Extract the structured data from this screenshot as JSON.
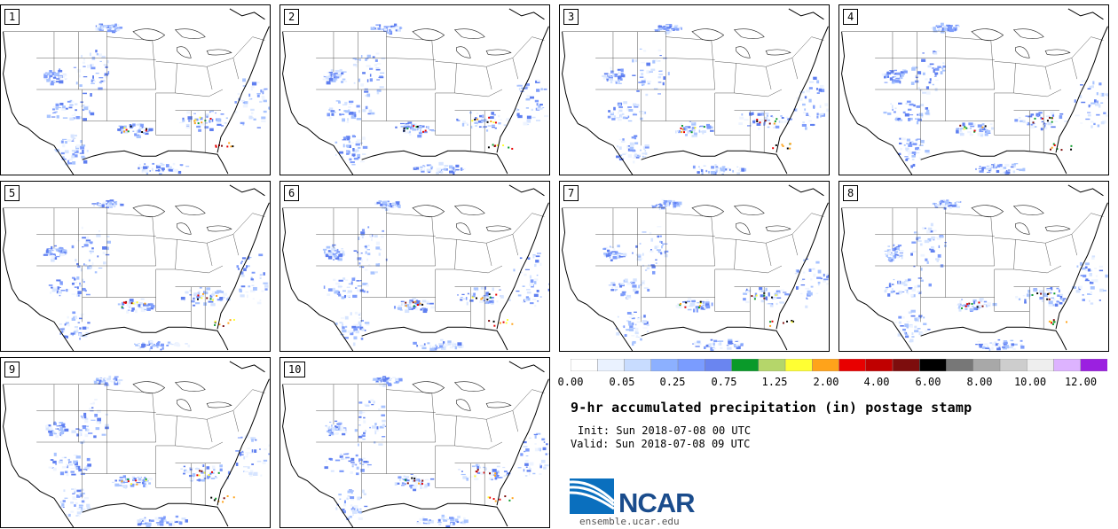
{
  "panels": [
    {
      "label": "1"
    },
    {
      "label": "2"
    },
    {
      "label": "3"
    },
    {
      "label": "4"
    },
    {
      "label": "5"
    },
    {
      "label": "6"
    },
    {
      "label": "7"
    },
    {
      "label": "8"
    },
    {
      "label": "9"
    },
    {
      "label": "10"
    }
  ],
  "colorbar": {
    "colors": [
      "#ffffff",
      "#eaf2ff",
      "#c8dcff",
      "#8cb0ff",
      "#7a9cff",
      "#6a85f0",
      "#0a9a2a",
      "#b5d66a",
      "#ffff33",
      "#ffa31a",
      "#e80000",
      "#c00000",
      "#7d0d0d",
      "#000000",
      "#777777",
      "#a8a8a8",
      "#cdcdcd",
      "#eeeeee",
      "#ddb3ff",
      "#9b20e0"
    ],
    "tick_labels": [
      "0.00",
      "0.05",
      "0.25",
      "0.75",
      "1.25",
      "2.00",
      "4.00",
      "6.00",
      "8.00",
      "10.00",
      "12.00"
    ]
  },
  "title": "9-hr accumulated precipitation (in) postage stamp",
  "init": "Init: Sun 2018-07-08 00 UTC",
  "valid": "Valid: Sun 2018-07-08 09 UTC",
  "logo": {
    "text": "NCAR",
    "url": "ensemble.ucar.edu"
  }
}
